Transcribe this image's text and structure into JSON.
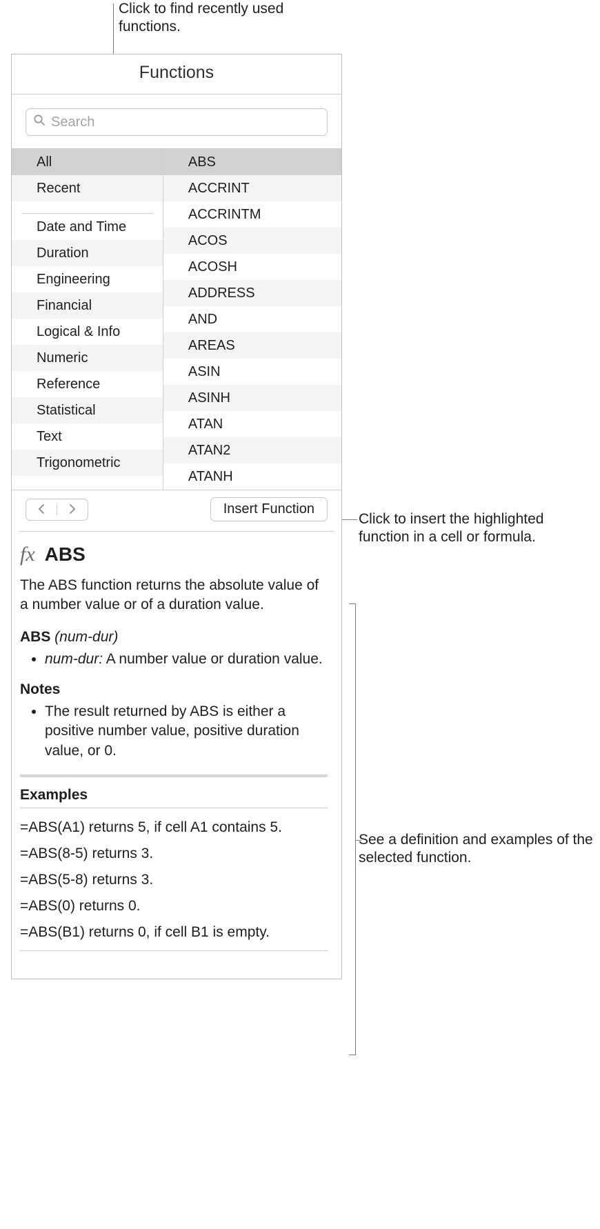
{
  "callouts": {
    "top": "Click to find recently used functions.",
    "right1": "Click to insert the highlighted function in a cell or formula.",
    "right2": "See a definition and examples of the selected function."
  },
  "panel": {
    "title": "Functions",
    "search_placeholder": "Search"
  },
  "categories": [
    {
      "label": "All",
      "selected": true
    },
    {
      "label": "Recent"
    },
    {
      "divider": true
    },
    {
      "label": "Date and Time"
    },
    {
      "label": "Duration"
    },
    {
      "label": "Engineering"
    },
    {
      "label": "Financial"
    },
    {
      "label": "Logical & Info"
    },
    {
      "label": "Numeric"
    },
    {
      "label": "Reference"
    },
    {
      "label": "Statistical"
    },
    {
      "label": "Text"
    },
    {
      "label": "Trigonometric"
    }
  ],
  "functions": [
    {
      "label": "ABS",
      "selected": true
    },
    {
      "label": "ACCRINT"
    },
    {
      "label": "ACCRINTM"
    },
    {
      "label": "ACOS"
    },
    {
      "label": "ACOSH"
    },
    {
      "label": "ADDRESS"
    },
    {
      "label": "AND"
    },
    {
      "label": "AREAS"
    },
    {
      "label": "ASIN"
    },
    {
      "label": "ASINH"
    },
    {
      "label": "ATAN"
    },
    {
      "label": "ATAN2"
    },
    {
      "label": "ATANH"
    }
  ],
  "insert_button": "Insert Function",
  "detail": {
    "fn_name": "ABS",
    "summary": "The ABS function returns the absolute value of a number value or of a duration value.",
    "signature_bold": "ABS",
    "signature_rest": " (num-dur)",
    "param_name": "num-dur:",
    "param_desc": " A number value or duration value.",
    "notes_heading": "Notes",
    "note1": "The result returned by ABS is either a positive number value, positive duration value, or 0.",
    "examples_heading": "Examples",
    "examples": [
      "=ABS(A1) returns 5, if cell A1 contains 5.",
      "=ABS(8-5) returns 3.",
      "=ABS(5-8) returns 3.",
      "=ABS(0) returns 0.",
      "=ABS(B1) returns 0, if cell B1 is empty."
    ]
  },
  "colors": {
    "border": "#bdbdbd",
    "row_alt": "#f4f4f4",
    "row_selected": "#d2d2d2",
    "leader": "#7f7f7f",
    "placeholder": "#a4a4a4"
  }
}
